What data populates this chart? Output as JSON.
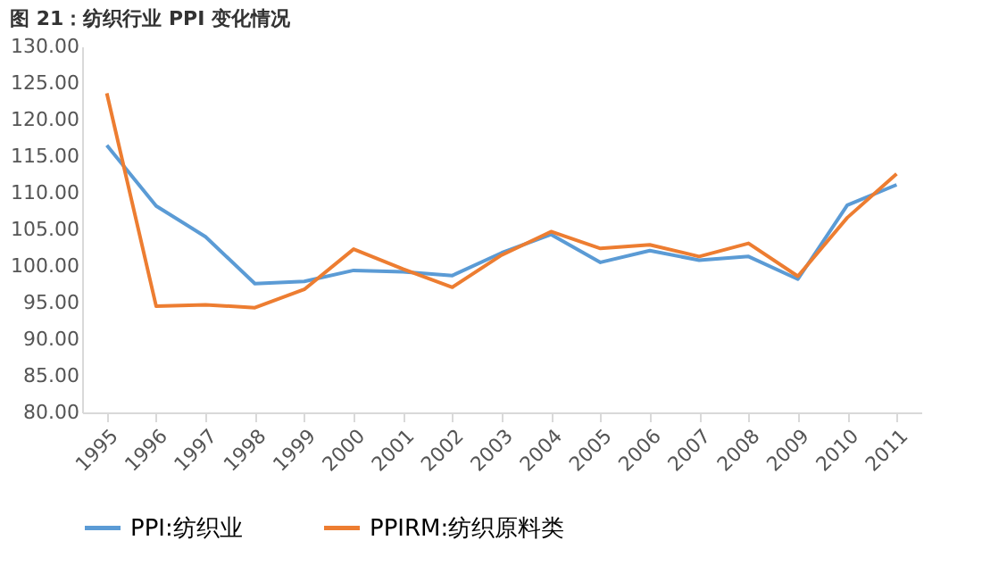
{
  "chart_data": {
    "type": "line",
    "title": "图 21：纺织行业 PPI 变化情况",
    "categories": [
      "1995",
      "1996",
      "1997",
      "1998",
      "1999",
      "2000",
      "2001",
      "2002",
      "2003",
      "2004",
      "2005",
      "2006",
      "2007",
      "2008",
      "2009",
      "2010",
      "2011"
    ],
    "series": [
      {
        "name": "PPI:纺织业",
        "color": "#5b9bd5",
        "values": [
          116.5,
          108.2,
          104.0,
          97.6,
          97.9,
          99.4,
          99.2,
          98.7,
          101.8,
          104.3,
          100.5,
          102.1,
          100.8,
          101.3,
          98.2,
          108.3,
          111.1
        ]
      },
      {
        "name": "PPIRM:纺织原料类",
        "color": "#ed7d31",
        "values": [
          123.6,
          94.5,
          94.7,
          94.3,
          96.8,
          102.3,
          99.6,
          97.1,
          101.5,
          104.7,
          102.4,
          102.9,
          101.3,
          103.1,
          98.6,
          106.6,
          112.6
        ]
      }
    ],
    "ylim": [
      80,
      130
    ],
    "yticks": [
      {
        "value": 80,
        "label": "80.00"
      },
      {
        "value": 85,
        "label": "85.00"
      },
      {
        "value": 90,
        "label": "90.00"
      },
      {
        "value": 95,
        "label": "95.00"
      },
      {
        "value": 100,
        "label": "100.00"
      },
      {
        "value": 105,
        "label": "105.00"
      },
      {
        "value": 110,
        "label": "110.00"
      },
      {
        "value": 115,
        "label": "115.00"
      },
      {
        "value": 120,
        "label": "120.00"
      },
      {
        "value": 125,
        "label": "125.00"
      },
      {
        "value": 130,
        "label": "130.00"
      }
    ],
    "grid": false,
    "legend": "bottom",
    "marker": "none",
    "line_style": "solid"
  }
}
